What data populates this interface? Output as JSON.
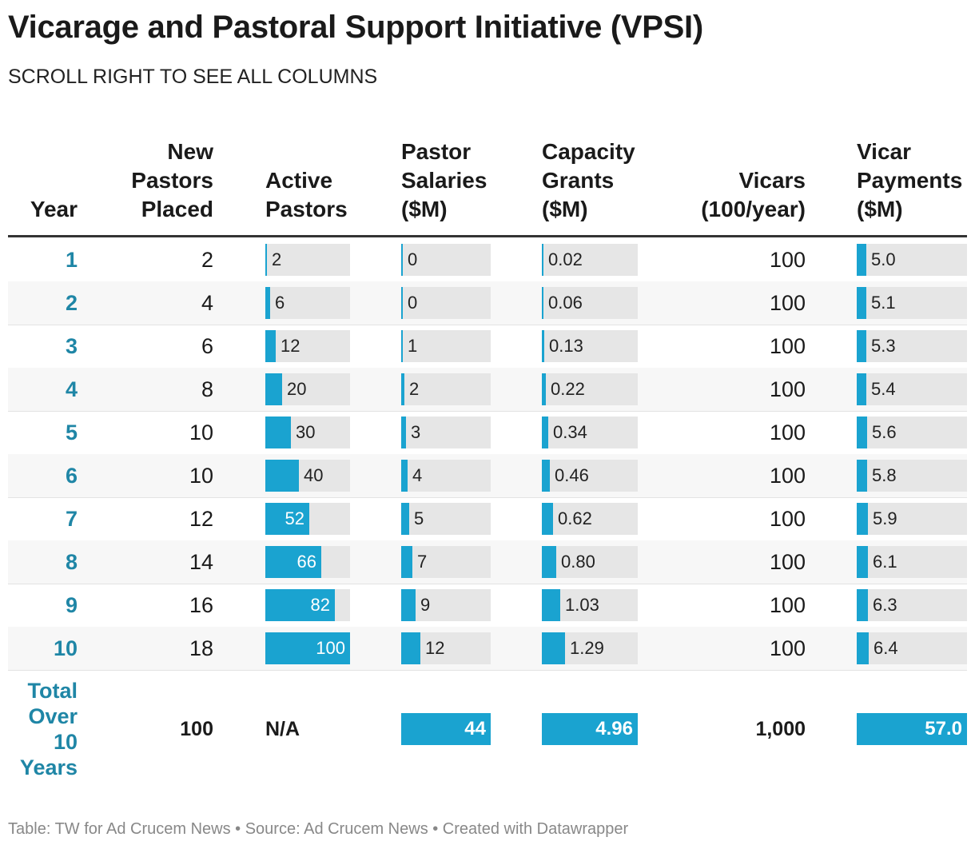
{
  "title": "Vicarage and Pastoral Support Initiative (VPSI)",
  "subtitle": "SCROLL RIGHT TO SEE ALL COLUMNS",
  "footer": "Table: TW for Ad Crucem News • Source: Ad Crucem News • Created with Datawrapper",
  "colors": {
    "bar": "#1aa3d0",
    "bar_bg": "#e6e6e6",
    "year": "#1f86a6"
  },
  "chart_data": {
    "type": "table",
    "columns": [
      "Year",
      "New\nPastors\nPlaced",
      "Active\nPastors",
      "Pastor\nSalaries\n($M)",
      "Capacity\nGrants\n($M)",
      "Vicars\n(100/year)",
      "Vicar\nPayments\n($M)"
    ],
    "rows": [
      {
        "year": "1",
        "new_pastors": "2",
        "active_pastors": "2",
        "pastor_salaries": "0",
        "capacity_grants": "0.02",
        "vicars": "100",
        "vicar_payments": "5.0"
      },
      {
        "year": "2",
        "new_pastors": "4",
        "active_pastors": "6",
        "pastor_salaries": "0",
        "capacity_grants": "0.06",
        "vicars": "100",
        "vicar_payments": "5.1"
      },
      {
        "year": "3",
        "new_pastors": "6",
        "active_pastors": "12",
        "pastor_salaries": "1",
        "capacity_grants": "0.13",
        "vicars": "100",
        "vicar_payments": "5.3"
      },
      {
        "year": "4",
        "new_pastors": "8",
        "active_pastors": "20",
        "pastor_salaries": "2",
        "capacity_grants": "0.22",
        "vicars": "100",
        "vicar_payments": "5.4"
      },
      {
        "year": "5",
        "new_pastors": "10",
        "active_pastors": "30",
        "pastor_salaries": "3",
        "capacity_grants": "0.34",
        "vicars": "100",
        "vicar_payments": "5.6"
      },
      {
        "year": "6",
        "new_pastors": "10",
        "active_pastors": "40",
        "pastor_salaries": "4",
        "capacity_grants": "0.46",
        "vicars": "100",
        "vicar_payments": "5.8"
      },
      {
        "year": "7",
        "new_pastors": "12",
        "active_pastors": "52",
        "pastor_salaries": "5",
        "capacity_grants": "0.62",
        "vicars": "100",
        "vicar_payments": "5.9"
      },
      {
        "year": "8",
        "new_pastors": "14",
        "active_pastors": "66",
        "pastor_salaries": "7",
        "capacity_grants": "0.80",
        "vicars": "100",
        "vicar_payments": "6.1"
      },
      {
        "year": "9",
        "new_pastors": "16",
        "active_pastors": "82",
        "pastor_salaries": "9",
        "capacity_grants": "1.03",
        "vicars": "100",
        "vicar_payments": "6.3"
      },
      {
        "year": "10",
        "new_pastors": "18",
        "active_pastors": "100",
        "pastor_salaries": "12",
        "capacity_grants": "1.29",
        "vicars": "100",
        "vicar_payments": "6.4"
      }
    ],
    "total": {
      "label": "Total\nOver\n10\nYears",
      "new_pastors": "100",
      "active_pastors": "N/A",
      "pastor_salaries": "44",
      "capacity_grants": "4.96",
      "vicars": "1,000",
      "vicar_payments": "57.0"
    },
    "bar_scales": {
      "active_pastors": [
        0,
        100
      ],
      "pastor_salaries": [
        0,
        55
      ],
      "capacity_grants": [
        0,
        5.3
      ],
      "vicar_payments": [
        0,
        60
      ]
    }
  }
}
